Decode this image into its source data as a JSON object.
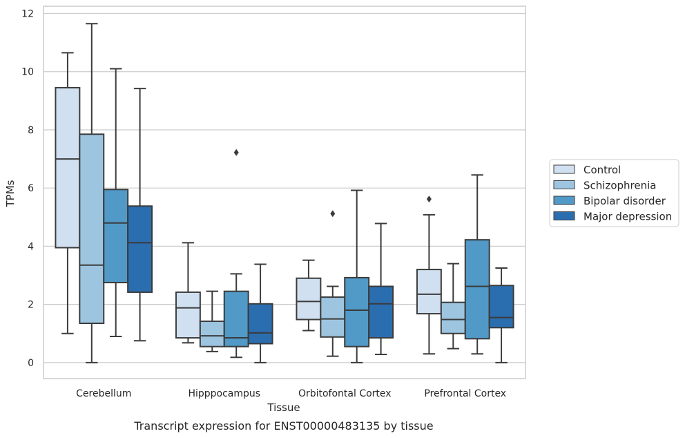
{
  "chart_data": {
    "type": "box",
    "xlabel": "Tissue",
    "ylabel": "TPMs",
    "caption": "Transcript expression for ENST00000483135 by tissue",
    "ylim": [
      -0.55,
      12.25
    ],
    "yticks": [
      "0",
      "2",
      "4",
      "6",
      "8",
      "10",
      "12"
    ],
    "grid": "horizontal",
    "legend_position": "right",
    "categories": [
      "Cerebellum",
      "Hipppocampus",
      "Orbitofontal Cortex",
      "Prefrontal Cortex"
    ],
    "series": [
      {
        "name": "Control",
        "color": "#d0e0f0",
        "boxes": [
          {
            "whisker_low": 1.0,
            "q1": 3.95,
            "median": 7.0,
            "q3": 9.45,
            "whisker_high": 10.65,
            "outliers": []
          },
          {
            "whisker_low": 0.68,
            "q1": 0.85,
            "median": 1.88,
            "q3": 2.42,
            "whisker_high": 4.12,
            "outliers": []
          },
          {
            "whisker_low": 1.1,
            "q1": 1.48,
            "median": 2.1,
            "q3": 2.9,
            "whisker_high": 3.52,
            "outliers": []
          },
          {
            "whisker_low": 0.3,
            "q1": 1.68,
            "median": 2.35,
            "q3": 3.2,
            "whisker_high": 5.08,
            "outliers": [
              5.62
            ]
          }
        ]
      },
      {
        "name": "Schizophrenia",
        "color": "#9dc5e0",
        "boxes": [
          {
            "whisker_low": 0.0,
            "q1": 1.35,
            "median": 3.35,
            "q3": 7.85,
            "whisker_high": 11.65,
            "outliers": []
          },
          {
            "whisker_low": 0.38,
            "q1": 0.55,
            "median": 0.92,
            "q3": 1.42,
            "whisker_high": 2.45,
            "outliers": []
          },
          {
            "whisker_low": 0.22,
            "q1": 0.88,
            "median": 1.5,
            "q3": 2.25,
            "whisker_high": 2.62,
            "outliers": [
              5.12
            ]
          },
          {
            "whisker_low": 0.48,
            "q1": 1.0,
            "median": 1.48,
            "q3": 2.07,
            "whisker_high": 3.4,
            "outliers": []
          }
        ]
      },
      {
        "name": "Bipolar disorder",
        "color": "#5199c6",
        "boxes": [
          {
            "whisker_low": 0.9,
            "q1": 2.75,
            "median": 4.8,
            "q3": 5.95,
            "whisker_high": 10.1,
            "outliers": []
          },
          {
            "whisker_low": 0.18,
            "q1": 0.55,
            "median": 0.85,
            "q3": 2.45,
            "whisker_high": 3.05,
            "outliers": [
              7.22
            ]
          },
          {
            "whisker_low": 0.0,
            "q1": 0.55,
            "median": 1.8,
            "q3": 2.92,
            "whisker_high": 5.92,
            "outliers": []
          },
          {
            "whisker_low": 0.3,
            "q1": 0.82,
            "median": 2.62,
            "q3": 4.22,
            "whisker_high": 6.45,
            "outliers": []
          }
        ]
      },
      {
        "name": "Major depression",
        "color": "#2b6eaf",
        "boxes": [
          {
            "whisker_low": 0.75,
            "q1": 2.42,
            "median": 4.12,
            "q3": 5.38,
            "whisker_high": 9.42,
            "outliers": []
          },
          {
            "whisker_low": 0.0,
            "q1": 0.65,
            "median": 1.02,
            "q3": 2.02,
            "whisker_high": 3.38,
            "outliers": []
          },
          {
            "whisker_low": 0.28,
            "q1": 0.85,
            "median": 2.02,
            "q3": 2.62,
            "whisker_high": 4.78,
            "outliers": []
          },
          {
            "whisker_low": 0.0,
            "q1": 1.2,
            "median": 1.55,
            "q3": 2.65,
            "whisker_high": 3.25,
            "outliers": []
          }
        ]
      }
    ]
  }
}
